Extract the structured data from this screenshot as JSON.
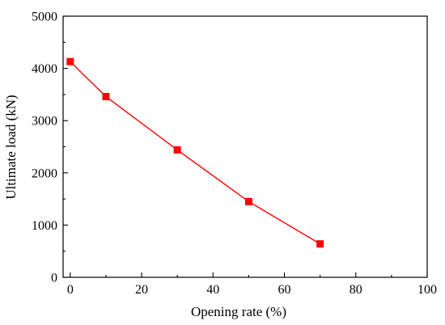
{
  "chart_data": {
    "type": "line",
    "xlabel": "Opening rate (%)",
    "ylabel": "Ultimate load (kN)",
    "xlim": [
      -2,
      100
    ],
    "ylim": [
      0,
      5000
    ],
    "x_ticks": [
      0,
      20,
      40,
      60,
      80,
      100
    ],
    "y_ticks": [
      0,
      1000,
      2000,
      3000,
      4000,
      5000
    ],
    "x_tick_labels": [
      "0",
      "20",
      "40",
      "60",
      "80",
      "100"
    ],
    "y_tick_labels": [
      "0",
      "1000",
      "2000",
      "3000",
      "4000",
      "5000"
    ],
    "grid": false,
    "legend": "none",
    "series": [
      {
        "color": "#ff0000",
        "marker": "square",
        "x": [
          0,
          10,
          30,
          50,
          70
        ],
        "values": [
          4130,
          3460,
          2440,
          1450,
          640
        ]
      }
    ]
  }
}
